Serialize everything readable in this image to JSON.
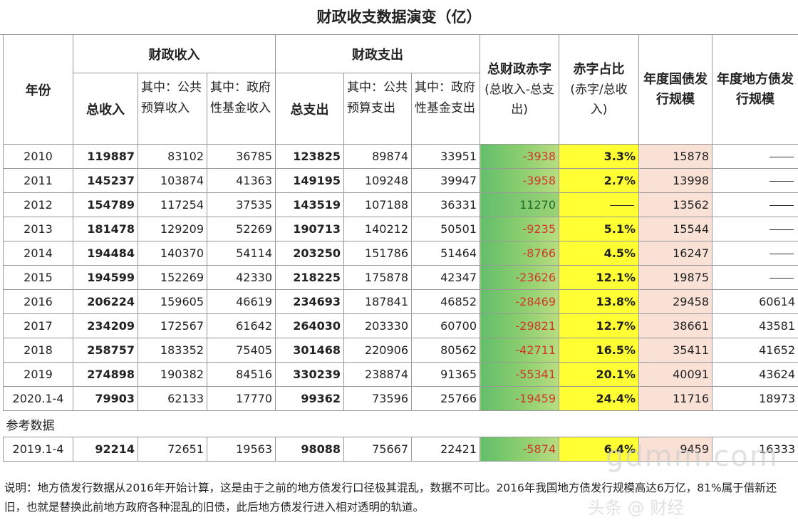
{
  "title": "财政收支数据演变（亿）",
  "headers": {
    "year": "年份",
    "revenue_group": "财政收入",
    "expenditure_group": "财政支出",
    "deficit_top": "总财政赤字",
    "deficit_sub": "(总收入-总支出)",
    "ratio_top": "赤字占比",
    "ratio_sub": "(赤字/总收入)",
    "national_bond": "年度国债发行规模",
    "local_bond": "年度地方债发行规模",
    "total_revenue": "总收入",
    "public_budget_revenue": "其中：公共预算收入",
    "gov_fund_revenue": "其中：政府性基金收入",
    "total_expenditure": "总支出",
    "public_budget_expenditure": "其中：公共预算支出",
    "gov_fund_expenditure": "其中：政府性基金支出"
  },
  "rows": [
    {
      "year": "2010",
      "total_rev": "119887",
      "pub_rev": "83102",
      "fund_rev": "36785",
      "total_exp": "123825",
      "pub_exp": "89874",
      "fund_exp": "33951",
      "deficit": "-3938",
      "ratio": "3.3%",
      "nat_bond": "15878",
      "local_bond": ""
    },
    {
      "year": "2011",
      "total_rev": "145237",
      "pub_rev": "103874",
      "fund_rev": "41363",
      "total_exp": "149195",
      "pub_exp": "109248",
      "fund_exp": "39947",
      "deficit": "-3958",
      "ratio": "2.7%",
      "nat_bond": "13998",
      "local_bond": ""
    },
    {
      "year": "2012",
      "total_rev": "154789",
      "pub_rev": "117254",
      "fund_rev": "37535",
      "total_exp": "143519",
      "pub_exp": "107188",
      "fund_exp": "36331",
      "deficit": "11270",
      "ratio": "",
      "nat_bond": "13562",
      "local_bond": ""
    },
    {
      "year": "2013",
      "total_rev": "181478",
      "pub_rev": "129209",
      "fund_rev": "52269",
      "total_exp": "190713",
      "pub_exp": "140212",
      "fund_exp": "50501",
      "deficit": "-9235",
      "ratio": "5.1%",
      "nat_bond": "15544",
      "local_bond": ""
    },
    {
      "year": "2014",
      "total_rev": "194484",
      "pub_rev": "140370",
      "fund_rev": "54114",
      "total_exp": "203250",
      "pub_exp": "151786",
      "fund_exp": "51464",
      "deficit": "-8766",
      "ratio": "4.5%",
      "nat_bond": "16247",
      "local_bond": ""
    },
    {
      "year": "2015",
      "total_rev": "194599",
      "pub_rev": "152269",
      "fund_rev": "42330",
      "total_exp": "218225",
      "pub_exp": "175878",
      "fund_exp": "42347",
      "deficit": "-23626",
      "ratio": "12.1%",
      "nat_bond": "19875",
      "local_bond": ""
    },
    {
      "year": "2016",
      "total_rev": "206224",
      "pub_rev": "159605",
      "fund_rev": "46619",
      "total_exp": "234693",
      "pub_exp": "187841",
      "fund_exp": "46852",
      "deficit": "-28469",
      "ratio": "13.8%",
      "nat_bond": "29458",
      "local_bond": "60614"
    },
    {
      "year": "2017",
      "total_rev": "234209",
      "pub_rev": "172567",
      "fund_rev": "61642",
      "total_exp": "264030",
      "pub_exp": "203330",
      "fund_exp": "60700",
      "deficit": "-29821",
      "ratio": "12.7%",
      "nat_bond": "38661",
      "local_bond": "43581"
    },
    {
      "year": "2018",
      "total_rev": "258757",
      "pub_rev": "183352",
      "fund_rev": "75405",
      "total_exp": "301468",
      "pub_exp": "220906",
      "fund_exp": "80562",
      "deficit": "-42711",
      "ratio": "16.5%",
      "nat_bond": "35411",
      "local_bond": "41652"
    },
    {
      "year": "2019",
      "total_rev": "274898",
      "pub_rev": "190382",
      "fund_rev": "84516",
      "total_exp": "330239",
      "pub_exp": "238874",
      "fund_exp": "91365",
      "deficit": "-55341",
      "ratio": "20.1%",
      "nat_bond": "40091",
      "local_bond": "43624"
    },
    {
      "year": "2020.1-4",
      "total_rev": "79903",
      "pub_rev": "62133",
      "fund_rev": "17770",
      "total_exp": "99362",
      "pub_exp": "73596",
      "fund_exp": "25766",
      "deficit": "-19459",
      "ratio": "24.4%",
      "nat_bond": "11716",
      "local_bond": "18973"
    }
  ],
  "reference_label": "参考数据",
  "reference_row": {
    "year": "2019.1-4",
    "total_rev": "92214",
    "pub_rev": "72651",
    "fund_rev": "19563",
    "total_exp": "98088",
    "pub_exp": "75667",
    "fund_exp": "22421",
    "deficit": "-5874",
    "ratio": "6.4%",
    "nat_bond": "9459",
    "local_bond": "16333"
  },
  "note": "说明：地方债发行数据从2016年开始计算，这是由于之前的地方债发行口径极其混乱，数据不可比。2016年我国地方债发行规模高达6万亿，81%属于借新还旧，也就是替换此前地方政府各种混乱的旧债，此后地方债发行进入相对透明的轨道。",
  "watermark_site": "gdmm.com",
  "watermark_brand": "头条 @ 财经"
}
